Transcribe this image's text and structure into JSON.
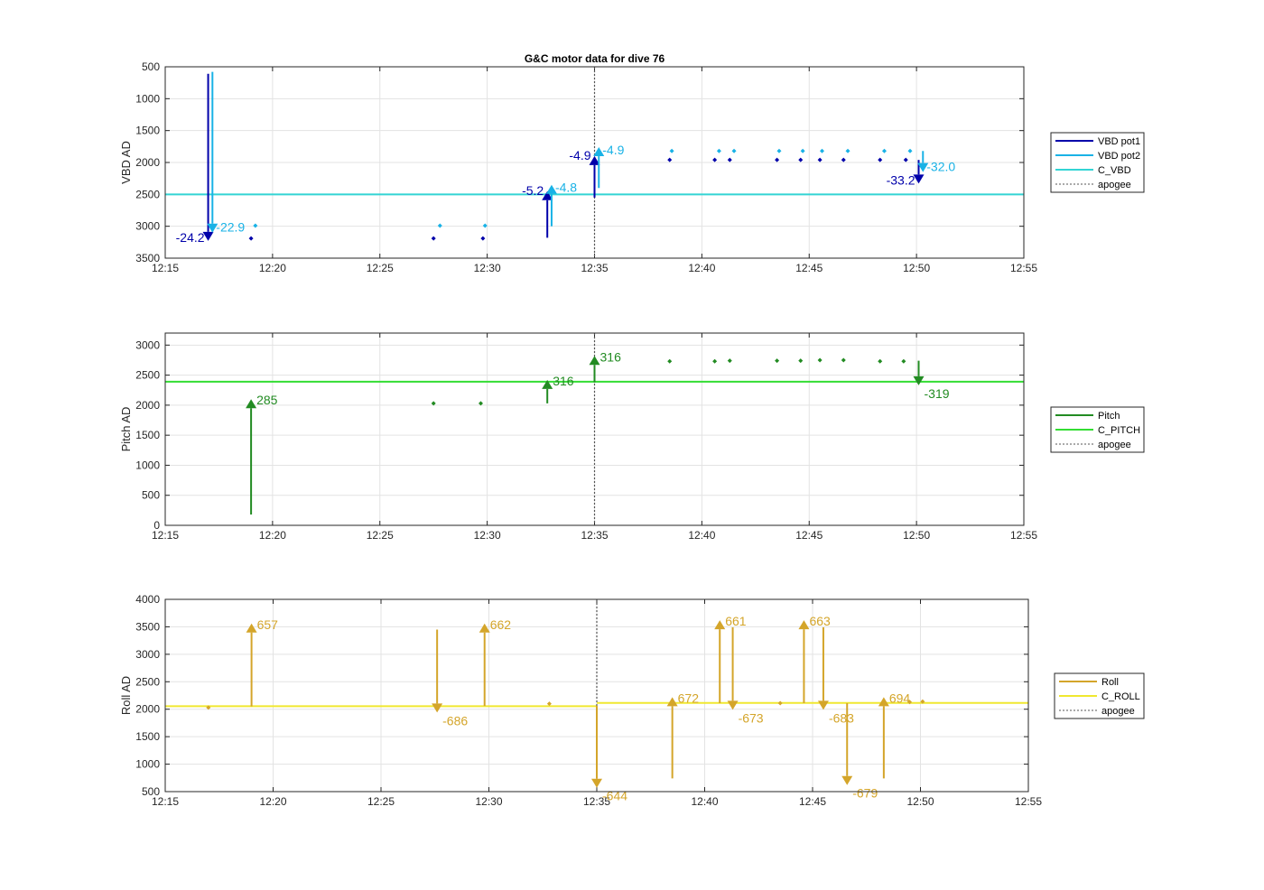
{
  "chart_data": [
    {
      "type": "line",
      "title": "G&C motor data for dive 76",
      "ylabel": "VBD AD",
      "xlim": [
        "12:15",
        "12:55"
      ],
      "ylim": [
        500,
        3500
      ],
      "y_reversed": true,
      "xticks": [
        "12:15",
        "12:20",
        "12:25",
        "12:30",
        "12:35",
        "12:40",
        "12:45",
        "12:50",
        "12:55"
      ],
      "yticks": [
        500,
        1000,
        1500,
        2000,
        2500,
        3000,
        3500
      ],
      "legend": [
        "VBD pot1",
        "VBD pot2",
        "C_VBD",
        "apogee"
      ],
      "legend_placement": "outside-right",
      "grid": true,
      "colors": {
        "pot1": "#0000aa",
        "pot2": "#19b2e6",
        "c_line": "#33d4d4",
        "apogee": "#555555"
      },
      "c_vbd": 2500,
      "apogee": "12:35",
      "points_pot1": [
        {
          "x": "12:19",
          "y": 3190
        },
        {
          "x": "12:27.5",
          "y": 3190
        },
        {
          "x": "12:29.8",
          "y": 3190
        },
        {
          "x": "12:38.5",
          "y": 1960
        },
        {
          "x": "12:40.6",
          "y": 1960
        },
        {
          "x": "12:41.3",
          "y": 1960
        },
        {
          "x": "12:43.5",
          "y": 1960
        },
        {
          "x": "12:44.6",
          "y": 1960
        },
        {
          "x": "12:45.5",
          "y": 1960
        },
        {
          "x": "12:46.6",
          "y": 1960
        },
        {
          "x": "12:48.3",
          "y": 1960
        },
        {
          "x": "12:49.5",
          "y": 1960
        }
      ],
      "points_pot2": [
        {
          "x": "12:19.2",
          "y": 2990
        },
        {
          "x": "12:27.8",
          "y": 2990
        },
        {
          "x": "12:29.9",
          "y": 2990
        },
        {
          "x": "12:38.6",
          "y": 1820
        },
        {
          "x": "12:40.8",
          "y": 1820
        },
        {
          "x": "12:41.5",
          "y": 1820
        },
        {
          "x": "12:43.6",
          "y": 1820
        },
        {
          "x": "12:44.7",
          "y": 1820
        },
        {
          "x": "12:45.6",
          "y": 1820
        },
        {
          "x": "12:46.8",
          "y": 1820
        },
        {
          "x": "12:48.5",
          "y": 1820
        },
        {
          "x": "12:49.7",
          "y": 1820
        }
      ],
      "moves": [
        {
          "series": "pot1",
          "x": "12:17",
          "y_start": 610,
          "y_end": 3230,
          "label": "-24.2",
          "label_side": "left"
        },
        {
          "series": "pot2",
          "x": "12:17.2",
          "y_start": 580,
          "y_end": 3100,
          "label": "-22.9",
          "label_side": "right"
        },
        {
          "series": "pot1",
          "x": "12:32.8",
          "y_start": 3180,
          "y_end": 2450,
          "label": "-5.2",
          "label_side": "left"
        },
        {
          "series": "pot2",
          "x": "12:33",
          "y_start": 3000,
          "y_end": 2350,
          "label": "-4.8",
          "label_side": "right"
        },
        {
          "series": "pot1",
          "x": "12:35",
          "y_start": 2550,
          "y_end": 1900,
          "label": "-4.9",
          "label_side": "left"
        },
        {
          "series": "pot2",
          "x": "12:35.2",
          "y_start": 2400,
          "y_end": 1760,
          "label": "-4.9",
          "label_side": "right"
        },
        {
          "series": "pot1",
          "x": "12:50.1",
          "y_start": 1960,
          "y_end": 2330,
          "label": "-33.2",
          "label_side": "left"
        },
        {
          "series": "pot2",
          "x": "12:50.3",
          "y_start": 1820,
          "y_end": 2150,
          "label": "-32.0",
          "label_side": "right"
        }
      ]
    },
    {
      "type": "line",
      "title": "",
      "ylabel": "Pitch AD",
      "xlim": [
        "12:15",
        "12:55"
      ],
      "ylim": [
        0,
        3200
      ],
      "xticks": [
        "12:15",
        "12:20",
        "12:25",
        "12:30",
        "12:35",
        "12:40",
        "12:45",
        "12:50",
        "12:55"
      ],
      "yticks": [
        0,
        500,
        1000,
        1500,
        2000,
        2500,
        3000
      ],
      "legend": [
        "Pitch",
        "C_PITCH",
        "apogee"
      ],
      "legend_placement": "outside-right",
      "grid": true,
      "colors": {
        "pitch": "#228b22",
        "c_line": "#33dd33",
        "apogee": "#555555"
      },
      "c_pitch": 2390,
      "apogee": "12:35",
      "points": [
        {
          "x": "12:27.5",
          "y": 2030
        },
        {
          "x": "12:29.7",
          "y": 2030
        },
        {
          "x": "12:38.5",
          "y": 2730
        },
        {
          "x": "12:40.6",
          "y": 2730
        },
        {
          "x": "12:41.3",
          "y": 2740
        },
        {
          "x": "12:43.5",
          "y": 2740
        },
        {
          "x": "12:44.6",
          "y": 2740
        },
        {
          "x": "12:45.5",
          "y": 2750
        },
        {
          "x": "12:46.6",
          "y": 2750
        },
        {
          "x": "12:48.3",
          "y": 2730
        },
        {
          "x": "12:49.4",
          "y": 2730
        }
      ],
      "moves": [
        {
          "x": "12:19",
          "y_start": 180,
          "y_end": 2100,
          "label": "285"
        },
        {
          "x": "12:32.8",
          "y_start": 2030,
          "y_end": 2420,
          "label": "316"
        },
        {
          "x": "12:35",
          "y_start": 2380,
          "y_end": 2820,
          "label": "316"
        },
        {
          "x": "12:50.1",
          "y_start": 2740,
          "y_end": 2330,
          "label": "-319"
        }
      ]
    },
    {
      "type": "line",
      "title": "",
      "ylabel": "Roll AD",
      "xlim": [
        "12:15",
        "12:55"
      ],
      "ylim": [
        500,
        4000
      ],
      "xticks": [
        "12:15",
        "12:20",
        "12:25",
        "12:30",
        "12:35",
        "12:40",
        "12:45",
        "12:50",
        "12:55"
      ],
      "yticks": [
        500,
        1000,
        1500,
        2000,
        2500,
        3000,
        3500,
        4000
      ],
      "legend": [
        "Roll",
        "C_ROLL",
        "apogee"
      ],
      "legend_placement": "outside-right",
      "grid": true,
      "colors": {
        "roll": "#d4a52a",
        "c_line": "#f0e830",
        "apogee": "#555555"
      },
      "c_roll_segments": [
        {
          "x0": "12:15",
          "x1": "12:35",
          "y": 2055
        },
        {
          "x0": "12:35",
          "x1": "12:55",
          "y": 2115
        }
      ],
      "apogee": "12:35",
      "points": [
        {
          "x": "12:17",
          "y": 2030
        },
        {
          "x": "12:32.8",
          "y": 2100
        },
        {
          "x": "12:43.5",
          "y": 2110
        },
        {
          "x": "12:49.5",
          "y": 2130
        },
        {
          "x": "12:50.1",
          "y": 2140
        }
      ],
      "moves": [
        {
          "x": "12:19",
          "y_start": 2050,
          "y_end": 3560,
          "label": "657"
        },
        {
          "x": "12:27.6",
          "y_start": 3450,
          "y_end": 1940,
          "label": "-686"
        },
        {
          "x": "12:29.8",
          "y_start": 2060,
          "y_end": 3560,
          "label": "662"
        },
        {
          "x": "12:35",
          "y_start": 2060,
          "y_end": 570,
          "label": "-644"
        },
        {
          "x": "12:38.5",
          "y_start": 740,
          "y_end": 2220,
          "label": "672"
        },
        {
          "x": "12:40.7",
          "y_start": 2110,
          "y_end": 3620,
          "label": "661"
        },
        {
          "x": "12:41.3",
          "y_start": 3490,
          "y_end": 1990,
          "label": "-673"
        },
        {
          "x": "12:44.6",
          "y_start": 2110,
          "y_end": 3620,
          "label": "663"
        },
        {
          "x": "12:45.5",
          "y_start": 3490,
          "y_end": 1990,
          "label": "-683"
        },
        {
          "x": "12:46.6",
          "y_start": 2110,
          "y_end": 620,
          "label": "-679"
        },
        {
          "x": "12:48.3",
          "y_start": 740,
          "y_end": 2220,
          "label": "694"
        }
      ]
    }
  ]
}
